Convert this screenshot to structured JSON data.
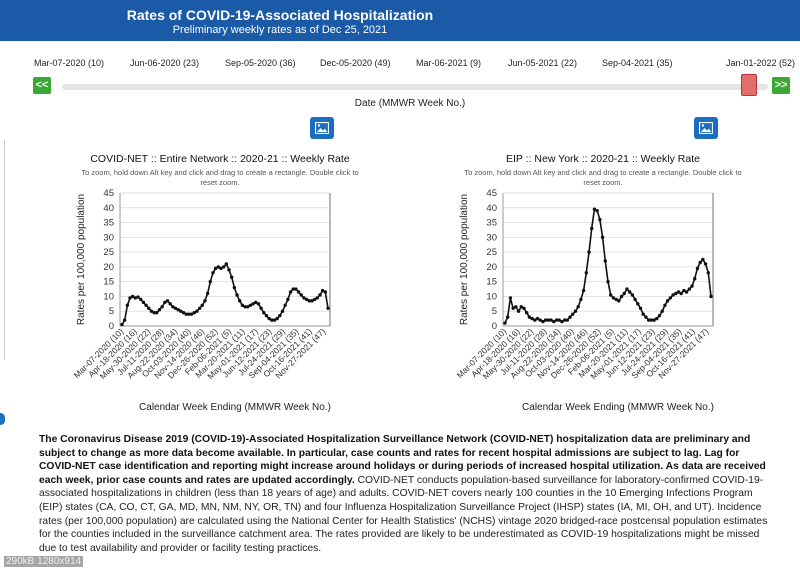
{
  "header": {
    "title": "Rates of COVID-19-Associated Hospitalization",
    "subtitle": "Preliminary weekly rates as of Dec 25, 2021"
  },
  "slider": {
    "tick_labels": [
      "Mar-07-2020 (10)",
      "Jun-06-2020 (23)",
      "Sep-05-2020 (36)",
      "Dec-05-2020 (49)",
      "Mar-06-2021 (9)",
      "Jun-05-2021 (22)",
      "Sep-04-2021 (35)",
      "Jan-01-2022 (52)"
    ],
    "prev_label": "<<",
    "next_label": ">>",
    "caption": "Date (MMWR Week No.)",
    "colors": {
      "button": "#3aa832",
      "thumb": "#e36c6c"
    }
  },
  "download_icon": "image-icon",
  "chart_data": [
    {
      "type": "line",
      "title": "COVID-NET :: Entire Network :: 2020-21 :: Weekly Rate",
      "note": "To zoom, hold down Alt key and click and drag to create a rectangle. Double click to reset zoom.",
      "xlabel": "Calendar Week Ending (MMWR Week No.)",
      "ylabel": "Rates per 100,000 population",
      "ylim": [
        0,
        45
      ],
      "yticks": [
        0,
        5,
        10,
        15,
        20,
        25,
        30,
        35,
        40,
        45
      ],
      "xtick_labels": [
        "Mar-07-2020 (10)",
        "Apr-18-2020 (16)",
        "May-30-2020 (22)",
        "Jul-11-2020 (28)",
        "Aug-22-2020 (34)",
        "Oct-03-2020 (40)",
        "Nov-14-2020 (46)",
        "Dec-26-2020 (52)",
        "Feb-06-2021 (5)",
        "Mar-20-2021 (11)",
        "May-01-2021 (17)",
        "Jun-12-2021 (23)",
        "Jul-24-2021 (29)",
        "Sep-04-2021 (35)",
        "Oct-16-2021 (41)",
        "Nov-27-2021 (47)"
      ],
      "grid": true,
      "series": [
        {
          "color": "#111111",
          "values": [
            0.5,
            2,
            7,
            9.5,
            10,
            9.5,
            9.8,
            9,
            8,
            7,
            6,
            5,
            4.5,
            4.5,
            5.5,
            6.5,
            8,
            8.5,
            7.5,
            6.5,
            6,
            5.5,
            5,
            4.5,
            4,
            4,
            4,
            4.5,
            5,
            6,
            7,
            8.5,
            11,
            15,
            18,
            19.5,
            20,
            19.5,
            20,
            21,
            19,
            16.5,
            13,
            10.5,
            8.5,
            7,
            6.5,
            6.5,
            7,
            7.5,
            8,
            7.5,
            6,
            4.5,
            3.5,
            2.5,
            2,
            2,
            2.5,
            3.5,
            5,
            7,
            9,
            11.5,
            12.5,
            12.5,
            11.5,
            10.5,
            9.5,
            9,
            8.5,
            8.5,
            9,
            9.5,
            10.5,
            12,
            11.5,
            6
          ]
        }
      ]
    },
    {
      "type": "line",
      "title": "EIP :: New York :: 2020-21 :: Weekly Rate",
      "note": "To zoom, hold down Alt key and click and drag to create a rectangle. Double click to reset zoom.",
      "xlabel": "Calendar Week Ending (MMWR Week No.)",
      "ylabel": "Rates per 100,000 population",
      "ylim": [
        0,
        45
      ],
      "yticks": [
        0,
        5,
        10,
        15,
        20,
        25,
        30,
        35,
        40,
        45
      ],
      "xtick_labels": [
        "Mar-07-2020 (10)",
        "Apr-18-2020 (16)",
        "May-30-2020 (22)",
        "Jul-11-2020 (28)",
        "Aug-22-2020 (34)",
        "Oct-03-2020 (40)",
        "Nov-14-2020 (46)",
        "Dec-26-2020 (52)",
        "Feb-06-2021 (5)",
        "Mar-20-2021 (11)",
        "May-01-2021 (17)",
        "Jun-12-2021 (23)",
        "Jul-24-2021 (29)",
        "Sep-04-2021 (35)",
        "Oct-16-2021 (41)",
        "Nov-27-2021 (47)"
      ],
      "grid": true,
      "series": [
        {
          "color": "#111111",
          "values": [
            1,
            3,
            9.5,
            6,
            6.5,
            5,
            6.5,
            6,
            4.5,
            3,
            2.5,
            2,
            2.5,
            2,
            1.5,
            2,
            2,
            2,
            1.5,
            2,
            2,
            1.5,
            2,
            2,
            3,
            4,
            5,
            6.5,
            9,
            12,
            18,
            25,
            33,
            39.5,
            39,
            36,
            30,
            22,
            15,
            10.5,
            9.5,
            9,
            8.5,
            10,
            11,
            12.5,
            11.5,
            10.5,
            9,
            7.5,
            6,
            4,
            3,
            2,
            2,
            2,
            2.5,
            3.5,
            5,
            7,
            8.5,
            9.5,
            10.5,
            11,
            11.5,
            11,
            12,
            11.5,
            12.5,
            13.5,
            16,
            19.5,
            21.5,
            22.5,
            21,
            18,
            10
          ]
        }
      ]
    }
  ],
  "description": {
    "bold": "The Coronavirus Disease 2019 (COVID-19)-Associated Hospitalization Surveillance Network (COVID-NET) hospitalization data are preliminary and subject to change as more data become available. In particular, case counts and rates for recent hospital admissions are subject to lag. Lag for COVID-NET case identification and reporting might increase around holidays or during periods of increased hospital utilization. As data are received each week, prior case counts and rates are updated accordingly.",
    "normal": " COVID-NET conducts population-based surveillance for laboratory-confirmed COVID-19-associated hospitalizations in children (less than 18 years of age) and adults. COVID-NET covers nearly 100 counties in the 10 Emerging Infections Program (EIP) states (CA, CO, CT, GA, MD, MN, NM, NY, OR, TN) and four Influenza Hospitalization Surveillance Project (IHSP) states (IA, MI, OH, and UT). Incidence rates (per 100,000 population) are calculated using the National Center for Health Statistics' (NCHS) vintage 2020 bridged-race postcensal population estimates for the counties included in the surveillance catchment area. The rates provided are likely to be underestimated as COVID-19 hospitalizations might be missed due to test availability and provider or facility testing practices."
  },
  "overlay": "290kB 1280x914"
}
